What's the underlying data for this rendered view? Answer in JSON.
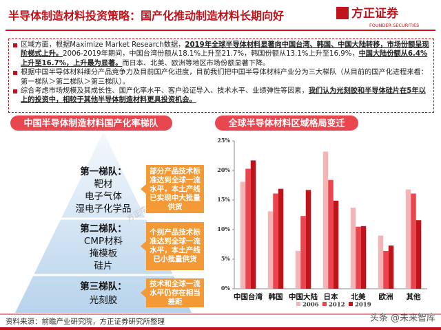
{
  "header": {
    "title": "半导体制造材料投资策略：国产化推动制造材料长期向好",
    "logo": "方正证券",
    "logo_en": "FOUNDER SECURITIES"
  },
  "bullets": [
    [
      {
        "text": "区域方面，根据Maximize Market Research数据，",
        "strong": false
      },
      {
        "text": "2019年全球半导体材料显著向中国台湾、韩国、中国大陆转移，市场份额呈现阶梯式上升。",
        "strong": true
      },
      {
        "text": "2006-2019年期间，中国台湾份额从18.1%上升至21.7%，韩国份额从13.1%上升至16.9%，",
        "strong": false
      },
      {
        "text": "中国大陆份额从6.4%上升至16.7%，上升最为显著。",
        "strong": true
      },
      {
        "text": "而日本、北美、欧洲等地区市场份额显著下降。",
        "strong": false
      }
    ],
    [
      {
        "text": "根据中国半导体材料细分产品竞争力及目前国产化进度，目前我们把中国半导体材料产业分为三大梯队（从目前的国产化进程来看：第一梯队＞第二梯队＞第三梯队）。",
        "strong": false
      }
    ],
    [
      {
        "text": "综合考虑市场规模及其成长性、国产化率水平、客户验证导入、技术水平、业绩弹性等因素，",
        "strong": false
      },
      {
        "text": "我们认为光刻胶和半导体硅片在5年以上的投资中，相较于其他半导体制造材料更具投资机会。",
        "strong": true
      }
    ]
  ],
  "pyramid": {
    "title": "中国半导体制造材料国产化率梯队",
    "tiers": [
      {
        "title": "第一梯队：",
        "items": [
          "靶材",
          "电子气体",
          "湿电子化学品"
        ],
        "note": "部分产品技术标准达到全球一流水平，本土产线已实现中大批量供货"
      },
      {
        "title": "第二梯队：",
        "items": [
          "CMP材料",
          "掩模板",
          "硅片"
        ],
        "note": "个别产品技术标准达到全球一流水平，本土产线已小批量供货"
      },
      {
        "title": "第三梯队：",
        "items": [
          "光刻胶"
        ],
        "note": "技术和全球一流水平仍存在相当差距"
      }
    ]
  },
  "chart_data": {
    "type": "bar",
    "title": "全球半导体材料区域格局变迁",
    "categories": [
      "中国台湾",
      "韩国",
      "中国大陆",
      "日本",
      "北美",
      "欧洲",
      "其他"
    ],
    "series": [
      {
        "name": "2006",
        "color": "#f4b3b5",
        "values": [
          18.1,
          13.1,
          6.4,
          23.2,
          13.7,
          9.0,
          16.8
        ]
      },
      {
        "name": "2012",
        "color": "#e8474f",
        "values": [
          20.3,
          16.1,
          12.3,
          18.4,
          10.5,
          6.4,
          16.1
        ]
      },
      {
        "name": "2019",
        "color": "#c0141c",
        "values": [
          21.7,
          16.9,
          16.7,
          14.9,
          10.6,
          7.3,
          11.6
        ]
      }
    ],
    "ylim": [
      0,
      25
    ],
    "yticks": [
      {
        "value": 0,
        "label": "0%"
      },
      {
        "value": 5,
        "label": "5%"
      },
      {
        "value": 10,
        "label": "10%"
      },
      {
        "value": 15,
        "label": "15%"
      },
      {
        "value": 20,
        "label": "20%"
      },
      {
        "value": 25,
        "label": "25%"
      }
    ],
    "grid": false,
    "legend": "bottom"
  },
  "footer": {
    "source": "资料来源：前瞻产业研究院，方正证券研究所整理"
  },
  "watermarks": [
    "方正李萌",
    "头条 @未来智库"
  ]
}
